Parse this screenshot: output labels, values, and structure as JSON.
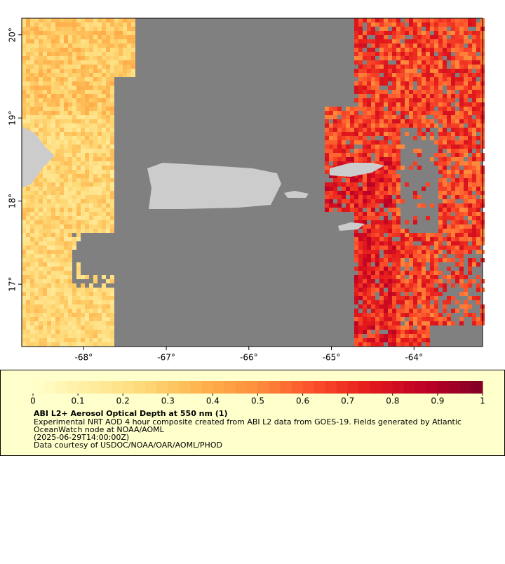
{
  "map": {
    "xlim": [
      -68.75,
      -63.17
    ],
    "ylim": [
      16.25,
      20.2
    ],
    "xticks": [
      {
        "value": -68,
        "label": "-68°"
      },
      {
        "value": -67,
        "label": "-67°"
      },
      {
        "value": -66,
        "label": "-66°"
      },
      {
        "value": -65,
        "label": "-65°"
      },
      {
        "value": -64,
        "label": "-64°"
      }
    ],
    "yticks": [
      {
        "value": 17,
        "label": "17°"
      },
      {
        "value": 18,
        "label": "18°"
      },
      {
        "value": 19,
        "label": "19°"
      },
      {
        "value": 20,
        "label": "20°"
      }
    ],
    "background_color": "#808080",
    "land_color": "#cccccc"
  },
  "colorbar": {
    "range": [
      0,
      1
    ],
    "ticks": [
      0,
      0.1,
      0.2,
      0.3,
      0.4,
      0.5,
      0.6,
      0.7,
      0.8,
      0.9,
      1
    ],
    "palette": [
      "#ffffcc",
      "#ffeda0",
      "#fed976",
      "#feb24c",
      "#fd8d3c",
      "#fc4e2a",
      "#e31a1c",
      "#bd0026",
      "#800026"
    ]
  },
  "legend": {
    "title": "ABI L2+ Aerosol Optical Depth at 550 nm (1)",
    "lines": [
      "Experimental NRT AOD 4 hour composite created from ABI L2 data from GOES-19. Fields generated by Atlantic",
      "OceanWatch node at NOAA/AOML",
      "(2025-06-29T14:00:00Z)",
      "Data courtesy of USDOC/NOAA/OAR/AOML/PHOD"
    ]
  }
}
